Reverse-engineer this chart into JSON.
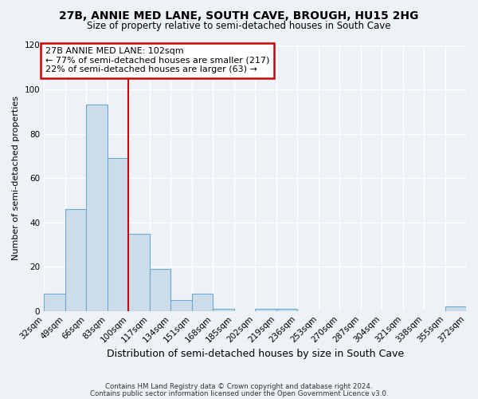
{
  "title": "27B, ANNIE MED LANE, SOUTH CAVE, BROUGH, HU15 2HG",
  "subtitle": "Size of property relative to semi-detached houses in South Cave",
  "xlabel": "Distribution of semi-detached houses by size in South Cave",
  "ylabel": "Number of semi-detached properties",
  "bar_color": "#ccdce8",
  "bar_edge_color": "#6aaad4",
  "bin_edges": [
    32,
    49,
    66,
    83,
    100,
    117,
    134,
    151,
    168,
    185,
    202,
    219,
    236,
    253,
    270,
    287,
    304,
    321,
    338,
    355,
    372
  ],
  "bin_labels": [
    "32sqm",
    "49sqm",
    "66sqm",
    "83sqm",
    "100sqm",
    "117sqm",
    "134sqm",
    "151sqm",
    "168sqm",
    "185sqm",
    "202sqm",
    "219sqm",
    "236sqm",
    "253sqm",
    "270sqm",
    "287sqm",
    "304sqm",
    "321sqm",
    "338sqm",
    "355sqm",
    "372sqm"
  ],
  "counts": [
    8,
    46,
    93,
    69,
    35,
    19,
    5,
    8,
    1,
    0,
    1,
    1,
    0,
    0,
    0,
    0,
    0,
    0,
    0,
    2
  ],
  "ylim": [
    0,
    120
  ],
  "yticks": [
    0,
    20,
    40,
    60,
    80,
    100,
    120
  ],
  "vline_x": 100,
  "annotation_title": "27B ANNIE MED LANE: 102sqm",
  "annotation_line1": "← 77% of semi-detached houses are smaller (217)",
  "annotation_line2": "22% of semi-detached houses are larger (63) →",
  "box_facecolor": "#ffffff",
  "box_edgecolor": "#cc0000",
  "vline_color": "#cc0000",
  "footer_line1": "Contains HM Land Registry data © Crown copyright and database right 2024.",
  "footer_line2": "Contains public sector information licensed under the Open Government Licence v3.0.",
  "bg_color": "#eef2f7",
  "grid_color": "#ffffff",
  "tick_label_fontsize": 7.5,
  "ylabel_fontsize": 8,
  "xlabel_fontsize": 9
}
